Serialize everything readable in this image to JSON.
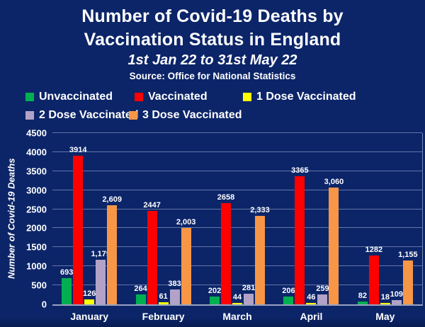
{
  "header": {
    "title_line1": "Number of Covid-19 Deaths by",
    "title_line2": "Vaccination Status in England",
    "subtitle": "1st Jan 22 to 31st May 22",
    "source": "Source: Office for National Statistics"
  },
  "colors": {
    "background": "#0c2569",
    "text": "#ffffff",
    "gridline": "#9eacce",
    "axis_line": "#97a3c0",
    "unvaccinated": "#00b050",
    "vaccinated": "#ff0000",
    "one_dose": "#ffff00",
    "two_dose": "#b2a2c7",
    "three_dose": "#f79646"
  },
  "chart_data": {
    "type": "bar",
    "title": "Number of Covid-19 Deaths by Vaccination Status in England",
    "subtitle": "1st Jan 22 to 31st May 22",
    "source": "Source: Office for National Statistics",
    "xlabel": "",
    "ylabel": "Number of Covid-19 Deaths",
    "ylim": [
      0,
      4500
    ],
    "ytick_step": 500,
    "yticks": [
      "0",
      "500",
      "1000",
      "1500",
      "2000",
      "2500",
      "3000",
      "3500",
      "4000",
      "4500"
    ],
    "grid": true,
    "legend_position": "top",
    "categories": [
      "January",
      "February",
      "March",
      "April",
      "May"
    ],
    "series": [
      {
        "name": "Unvaccinated",
        "color": "#00b050",
        "values": [
          693,
          264,
          202,
          206,
          82
        ],
        "labels": [
          "693",
          "264",
          "202",
          "206",
          "82"
        ]
      },
      {
        "name": "Vaccinated",
        "color": "#ff0000",
        "values": [
          3914,
          2447,
          2658,
          3365,
          1282
        ],
        "labels": [
          "3914",
          "2447",
          "2658",
          "3365",
          "1282"
        ]
      },
      {
        "name": "1 Dose Vaccinated",
        "color": "#ffff00",
        "values": [
          126,
          61,
          44,
          46,
          18
        ],
        "labels": [
          "126",
          "61",
          "44",
          "46",
          "18"
        ]
      },
      {
        "name": "2 Dose Vaccinated",
        "color": "#b2a2c7",
        "values": [
          1179,
          383,
          281,
          259,
          109
        ],
        "labels": [
          "1,179",
          "383",
          "281",
          "259",
          "109"
        ]
      },
      {
        "name": "3 Dose Vaccinated",
        "color": "#f79646",
        "values": [
          2609,
          2003,
          2333,
          3060,
          1155
        ],
        "labels": [
          "2,609",
          "2,003",
          "2,333",
          "3,060",
          "1,155"
        ]
      }
    ]
  }
}
